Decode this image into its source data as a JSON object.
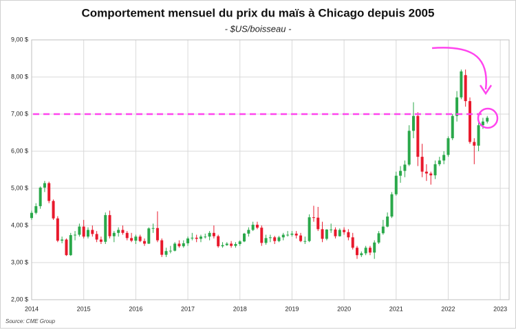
{
  "chart_data": {
    "type": "candlestick",
    "title": "Comportement mensuel du prix du maïs à Chicago depuis 2005",
    "subtitle": "- $US/boisseau -",
    "source": "Source: CME Group",
    "up_color": "#2aa84a",
    "down_color": "#e8192c",
    "reference_line": {
      "value": 7,
      "color": "#ff44ee"
    },
    "grid": true,
    "xlim": [
      2014,
      2023.17
    ],
    "xticks": [
      2014,
      2015,
      2016,
      2017,
      2018,
      2019,
      2020,
      2021,
      2022,
      2023
    ],
    "ylim": [
      2,
      9
    ],
    "yticks": [
      {
        "value": 2,
        "label": "2,00 $"
      },
      {
        "value": 3,
        "label": "3,00 $"
      },
      {
        "value": 4,
        "label": "4,00 $"
      },
      {
        "value": 5,
        "label": "5,00 $"
      },
      {
        "value": 6,
        "label": "6,00 $"
      },
      {
        "value": 7,
        "label": "7,00 $"
      },
      {
        "value": 8,
        "label": "8,00 $"
      },
      {
        "value": 9,
        "label": "9,00 $"
      }
    ],
    "x": [
      2014,
      2014.083,
      2014.167,
      2014.25,
      2014.333,
      2014.417,
      2014.5,
      2014.583,
      2014.667,
      2014.75,
      2014.833,
      2014.917,
      2015,
      2015.083,
      2015.167,
      2015.25,
      2015.333,
      2015.417,
      2015.5,
      2015.583,
      2015.667,
      2015.75,
      2015.833,
      2015.917,
      2016,
      2016.083,
      2016.167,
      2016.25,
      2016.333,
      2016.417,
      2016.5,
      2016.583,
      2016.667,
      2016.75,
      2016.833,
      2016.917,
      2017,
      2017.083,
      2017.167,
      2017.25,
      2017.333,
      2017.417,
      2017.5,
      2017.583,
      2017.667,
      2017.75,
      2017.833,
      2017.917,
      2018,
      2018.083,
      2018.167,
      2018.25,
      2018.333,
      2018.417,
      2018.5,
      2018.583,
      2018.667,
      2018.75,
      2018.833,
      2018.917,
      2019,
      2019.083,
      2019.167,
      2019.25,
      2019.333,
      2019.417,
      2019.5,
      2019.583,
      2019.667,
      2019.75,
      2019.833,
      2019.917,
      2020,
      2020.083,
      2020.167,
      2020.25,
      2020.333,
      2020.417,
      2020.5,
      2020.583,
      2020.667,
      2020.75,
      2020.833,
      2020.917,
      2021,
      2021.083,
      2021.167,
      2021.25,
      2021.333,
      2021.417,
      2021.5,
      2021.583,
      2021.667,
      2021.75,
      2021.833,
      2021.917,
      2022,
      2022.083,
      2022.167,
      2022.25,
      2022.333,
      2022.417,
      2022.5,
      2022.583,
      2022.667,
      2022.75
    ],
    "open": [
      4.2,
      4.34,
      4.52,
      5.02,
      5.14,
      4.66,
      4.19,
      3.59,
      3.62,
      3.2,
      3.74,
      3.75,
      3.97,
      3.7,
      3.88,
      3.77,
      3.62,
      3.56,
      4.28,
      3.71,
      3.8,
      3.88,
      3.8,
      3.66,
      3.59,
      3.7,
      3.58,
      3.51,
      3.92,
      3.93,
      3.6,
      3.21,
      3.31,
      3.32,
      3.51,
      3.44,
      3.52,
      3.65,
      3.67,
      3.64,
      3.7,
      3.7,
      3.8,
      3.71,
      3.44,
      3.47,
      3.51,
      3.45,
      3.5,
      3.57,
      3.78,
      3.88,
      4.02,
      3.94,
      3.53,
      3.66,
      3.68,
      3.58,
      3.68,
      3.75,
      3.75,
      3.78,
      3.73,
      3.58,
      3.58,
      4.22,
      4.21,
      3.9,
      3.64,
      3.89,
      3.89,
      3.71,
      3.88,
      3.82,
      3.68,
      3.4,
      3.2,
      3.25,
      3.4,
      3.27,
      3.54,
      3.79,
      3.97,
      4.24,
      4.84,
      5.34,
      5.47,
      5.64,
      6.55,
      6.95,
      5.85,
      5.45,
      5.4,
      5.35,
      5.65,
      5.75,
      5.9,
      6.35,
      6.95,
      7.45,
      8.05,
      7.35,
      6.25,
      6.15,
      6.7,
      6.8
    ],
    "high": [
      4.4,
      4.6,
      5.05,
      5.2,
      5.18,
      4.7,
      4.25,
      3.7,
      3.65,
      3.8,
      3.85,
      4.05,
      4.15,
      3.95,
      4.0,
      3.85,
      3.7,
      4.35,
      4.4,
      3.85,
      3.95,
      4.0,
      3.85,
      3.8,
      3.75,
      3.75,
      3.65,
      3.95,
      4.05,
      4.38,
      3.65,
      3.4,
      3.45,
      3.55,
      3.6,
      3.6,
      3.7,
      3.8,
      3.75,
      3.75,
      3.78,
      3.85,
      4.0,
      3.75,
      3.55,
      3.55,
      3.58,
      3.55,
      3.6,
      3.8,
      3.95,
      4.1,
      4.1,
      4.0,
      3.75,
      3.75,
      3.72,
      3.72,
      3.8,
      3.85,
      3.85,
      3.85,
      3.8,
      3.7,
      4.3,
      4.53,
      4.5,
      4.1,
      3.9,
      4.05,
      3.95,
      3.92,
      3.95,
      3.9,
      3.8,
      3.45,
      3.3,
      3.45,
      3.45,
      3.6,
      3.85,
      4.15,
      4.35,
      4.9,
      5.45,
      5.6,
      5.75,
      6.7,
      7.32,
      7.05,
      6.2,
      5.65,
      5.45,
      5.75,
      5.85,
      6.0,
      6.4,
      7.0,
      7.62,
      8.2,
      8.2,
      7.45,
      6.35,
      6.8,
      6.9,
      6.95
    ],
    "low": [
      4.15,
      4.3,
      4.45,
      4.9,
      4.6,
      4.15,
      3.55,
      3.52,
      3.18,
      3.18,
      3.6,
      3.7,
      3.65,
      3.65,
      3.7,
      3.55,
      3.5,
      3.5,
      3.65,
      3.55,
      3.7,
      3.75,
      3.6,
      3.55,
      3.5,
      3.55,
      3.45,
      3.5,
      3.8,
      3.55,
      3.15,
      3.15,
      3.25,
      3.3,
      3.4,
      3.4,
      3.45,
      3.6,
      3.55,
      3.55,
      3.65,
      3.6,
      3.65,
      3.4,
      3.4,
      3.45,
      3.4,
      3.4,
      3.45,
      3.55,
      3.7,
      3.85,
      3.9,
      3.45,
      3.48,
      3.55,
      3.5,
      3.55,
      3.6,
      3.7,
      3.7,
      3.65,
      3.55,
      3.5,
      3.55,
      4.1,
      3.85,
      3.55,
      3.6,
      3.8,
      3.65,
      3.7,
      3.75,
      3.6,
      3.35,
      3.1,
      3.15,
      3.2,
      3.2,
      3.1,
      3.5,
      3.75,
      3.95,
      4.2,
      4.8,
      5.15,
      5.3,
      5.6,
      6.35,
      5.6,
      5.3,
      5.2,
      5.1,
      5.25,
      5.6,
      5.65,
      5.85,
      6.3,
      6.8,
      7.4,
      7.2,
      6.2,
      5.65,
      6.0,
      6.6,
      6.75
    ],
    "close": [
      4.34,
      4.52,
      5.02,
      5.14,
      4.66,
      4.19,
      3.59,
      3.62,
      3.2,
      3.74,
      3.75,
      3.97,
      3.7,
      3.88,
      3.77,
      3.62,
      3.56,
      4.28,
      3.71,
      3.8,
      3.88,
      3.8,
      3.66,
      3.59,
      3.7,
      3.58,
      3.51,
      3.92,
      3.93,
      3.6,
      3.21,
      3.31,
      3.32,
      3.51,
      3.44,
      3.52,
      3.65,
      3.67,
      3.64,
      3.7,
      3.7,
      3.8,
      3.71,
      3.44,
      3.47,
      3.51,
      3.45,
      3.5,
      3.57,
      3.78,
      3.88,
      4.02,
      3.94,
      3.53,
      3.66,
      3.68,
      3.58,
      3.68,
      3.75,
      3.75,
      3.78,
      3.73,
      3.58,
      3.58,
      4.22,
      4.21,
      3.9,
      3.64,
      3.89,
      3.89,
      3.71,
      3.88,
      3.82,
      3.68,
      3.4,
      3.2,
      3.25,
      3.4,
      3.27,
      3.54,
      3.79,
      3.97,
      4.24,
      4.84,
      5.34,
      5.47,
      5.64,
      6.55,
      6.95,
      5.85,
      5.45,
      5.4,
      5.35,
      5.65,
      5.75,
      5.9,
      6.35,
      6.95,
      7.45,
      8.15,
      7.35,
      6.25,
      6.15,
      6.7,
      6.8,
      6.9
    ]
  }
}
